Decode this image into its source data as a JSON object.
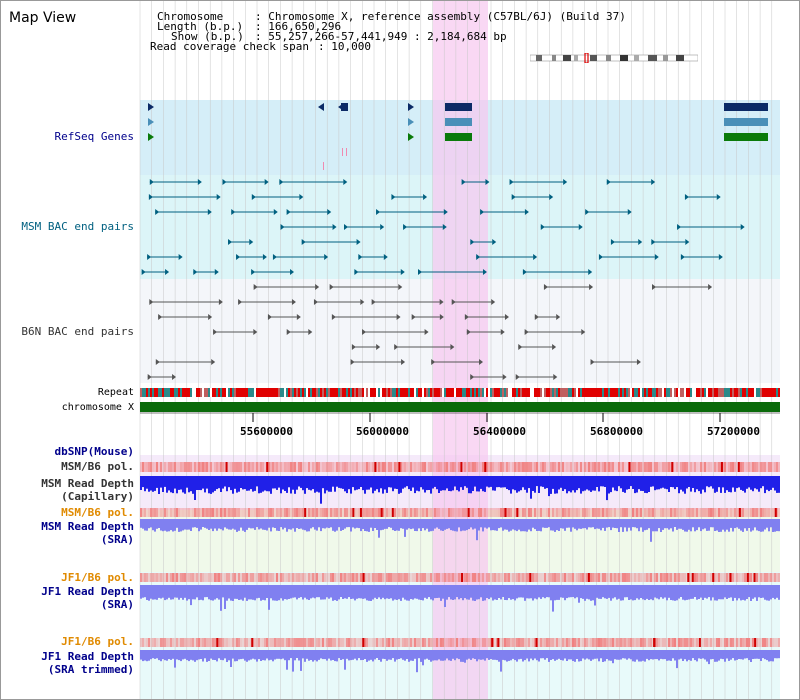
{
  "page": {
    "title": "Map View"
  },
  "header": {
    "chromosome_key": "Chromosome",
    "chromosome_val": ": Chromosome X, reference assembly (C57BL/6J) (Build 37)",
    "length_key": "Length (b.p.)",
    "length_val": ": 166,650,296",
    "show_key": "Show (b.p.)",
    "show_val": ": 55,257,266-57,441,949 : 2,184,684 bp",
    "coverage_key": "Read coverage check span",
    "coverage_val": ": 10,000"
  },
  "tracks": {
    "refseq": "RefSeq Genes",
    "msm_bac": "MSM BAC end pairs",
    "b6n_bac": "B6N BAC end pairs",
    "repeat": "Repeat",
    "chromosome": "chromosome X",
    "dbsnp": "dbSNP(Mouse)",
    "msm_b6_pol_1": "MSM/B6 pol.",
    "msm_depth_cap_1": "MSM Read Depth",
    "msm_depth_cap_2": "(Capillary)",
    "msm_b6_pol_2": "MSM/B6 pol.",
    "msm_depth_sra_1": "MSM Read Depth",
    "msm_depth_sra_2": "(SRA)",
    "jf1_b6_pol_1": "JF1/B6 pol.",
    "jf1_depth_sra_1": "JF1 Read Depth",
    "jf1_depth_sra_2": "(SRA)",
    "jf1_b6_pol_2": "JF1/B6 pol.",
    "jf1_depth_trim_1": "JF1 Read Depth",
    "jf1_depth_trim_2": "(SRA trimmed)"
  },
  "axis": {
    "ticks": [
      "55600000",
      "56000000",
      "56400000",
      "56800000",
      "57200000"
    ]
  },
  "colors": {
    "navy_label": "#00008b",
    "teal_label": "#006080",
    "gray_label": "#333333",
    "orange_label": "#e08a00",
    "highlight": "#f7c8f0",
    "refseq_bg": "#d5eef8",
    "bac_bg": "#dcf5f8",
    "b6n_bg": "#f4f6fa",
    "depth_blue": "#2020e8",
    "depth_light": "#8080f0",
    "pol_red": "#f08080",
    "chrom_green": "#0a6a0a"
  }
}
